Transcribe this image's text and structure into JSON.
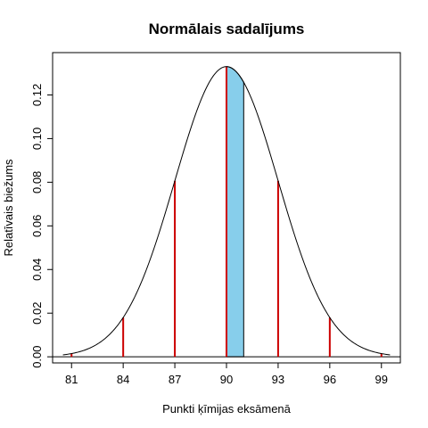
{
  "chart_data": {
    "type": "line",
    "title": "Normālais sadalījums",
    "xlabel": "Punkti ķīmijas eksāmenā",
    "ylabel": "Relatīvais biežums",
    "xlim": [
      79.9,
      100.1
    ],
    "ylim": [
      -0.0028,
      0.1394
    ],
    "x_ticks": [
      81,
      84,
      87,
      90,
      93,
      96,
      99
    ],
    "y_ticks": [
      0.0,
      0.02,
      0.04,
      0.06,
      0.08,
      0.1,
      0.12
    ],
    "y_tick_labels": [
      "0.00",
      "0.02",
      "0.04",
      "0.06",
      "0.08",
      "0.10",
      "0.12"
    ],
    "distribution": {
      "mean": 90,
      "sd": 3,
      "x_range": [
        80.5,
        99.5
      ]
    },
    "vertical_lines": {
      "x": [
        81,
        84,
        87,
        90,
        93,
        96,
        99
      ],
      "color": "#cc0000"
    },
    "shaded_region": {
      "from": 90,
      "to": 91,
      "color": "#87ceeb"
    },
    "curve_color": "#000000",
    "grid": false
  }
}
